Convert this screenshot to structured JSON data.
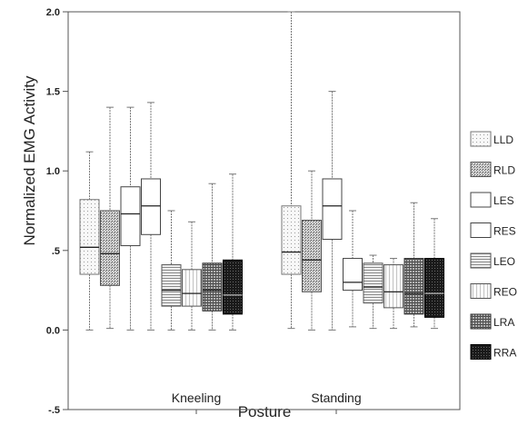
{
  "chart_data": {
    "type": "boxplot",
    "title": "",
    "xlabel": "Posture",
    "ylabel": "Normalized EMG Activity",
    "ylim": [
      -0.5,
      2.0
    ],
    "yticks": [
      2.0,
      1.5,
      1.0,
      0.5,
      0.0,
      -0.5
    ],
    "ytick_labels": [
      "2.0",
      "1.5",
      "1.0",
      ".5",
      "0.0",
      "-.5"
    ],
    "categories": [
      "Kneeling",
      "Standing"
    ],
    "legend_position": "right",
    "series": [
      {
        "name": "LLD",
        "fill": "#f6f6f6",
        "stroke": "#777777",
        "Kneeling": {
          "min": 0.0,
          "q1": 0.35,
          "median": 0.52,
          "q3": 0.82,
          "max": 1.12
        },
        "Standing": {
          "min": 0.01,
          "q1": 0.35,
          "median": 0.49,
          "q3": 0.78,
          "max": 2.0
        }
      },
      {
        "name": "RLD",
        "fill": "#bdbdbd",
        "stroke": "#555555",
        "Kneeling": {
          "min": 0.01,
          "q1": 0.28,
          "median": 0.48,
          "q3": 0.75,
          "max": 1.4
        },
        "Standing": {
          "min": 0.0,
          "q1": 0.24,
          "median": 0.44,
          "q3": 0.69,
          "max": 1.0
        }
      },
      {
        "name": "LES",
        "fill": "#ffffff",
        "stroke": "#444444",
        "Kneeling": {
          "min": 0.0,
          "q1": 0.53,
          "median": 0.73,
          "q3": 0.9,
          "max": 1.4
        },
        "Standing": {
          "min": 0.0,
          "q1": 0.57,
          "median": 0.78,
          "q3": 0.95,
          "max": 1.5
        }
      },
      {
        "name": "RES",
        "fill": "#ffffff",
        "stroke": "#444444",
        "Kneeling": {
          "min": 0.0,
          "q1": 0.6,
          "median": 0.78,
          "q3": 0.95,
          "max": 1.43
        },
        "Standing": {
          "min": 0.02,
          "q1": 0.25,
          "median": 0.3,
          "q3": 0.45,
          "max": 0.75
        }
      },
      {
        "name": "LEO",
        "fill": "#d9d9d9",
        "stroke": "#555555",
        "Kneeling": {
          "min": 0.0,
          "q1": 0.15,
          "median": 0.25,
          "q3": 0.41,
          "max": 0.75
        },
        "Standing": {
          "min": 0.01,
          "q1": 0.17,
          "median": 0.27,
          "q3": 0.42,
          "max": 0.47
        }
      },
      {
        "name": "REO",
        "fill": "#efefef",
        "stroke": "#555555",
        "Kneeling": {
          "min": 0.0,
          "q1": 0.15,
          "median": 0.23,
          "q3": 0.38,
          "max": 0.68
        },
        "Standing": {
          "min": 0.01,
          "q1": 0.14,
          "median": 0.24,
          "q3": 0.41,
          "max": 0.45
        }
      },
      {
        "name": "LRA",
        "fill": "#8a8a8a",
        "stroke": "#333333",
        "Kneeling": {
          "min": 0.0,
          "q1": 0.12,
          "median": 0.25,
          "q3": 0.42,
          "max": 0.92
        },
        "Standing": {
          "min": 0.02,
          "q1": 0.1,
          "median": 0.23,
          "q3": 0.45,
          "max": 0.8
        }
      },
      {
        "name": "RRA",
        "fill": "#2a2a2a",
        "stroke": "#000000",
        "Kneeling": {
          "min": 0.0,
          "q1": 0.1,
          "median": 0.22,
          "q3": 0.44,
          "max": 0.98
        },
        "Standing": {
          "min": 0.01,
          "q1": 0.08,
          "median": 0.23,
          "q3": 0.45,
          "max": 0.7
        }
      }
    ]
  }
}
